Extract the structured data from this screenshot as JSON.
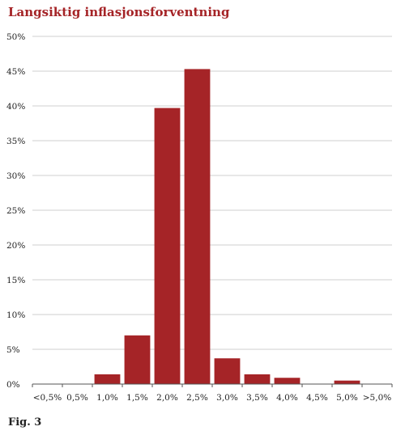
{
  "title": "Langsiktig inflasjonsforventning",
  "caption": "Fig. 3",
  "colors": {
    "bar": "#a52427",
    "title": "#a52427",
    "grid": "#cfcfcf",
    "axis": "#555555"
  },
  "chart_data": {
    "type": "bar",
    "title": "Langsiktig inflasjonsforventning",
    "xlabel": "",
    "ylabel": "",
    "categories": [
      "<0,5%",
      "0,5%",
      "1,0%",
      "1,5%",
      "2,0%",
      "2,5%",
      "3,0%",
      "3,5%",
      "4,0%",
      "4,5%",
      "5,0%",
      ">5,0%"
    ],
    "values": [
      0,
      0,
      1.4,
      7.0,
      39.7,
      45.3,
      3.7,
      1.4,
      0.9,
      0,
      0.5,
      0
    ],
    "ylim": [
      0,
      50
    ],
    "yticks": [
      0,
      5,
      10,
      15,
      20,
      25,
      30,
      35,
      40,
      45,
      50
    ],
    "ytick_labels": [
      "0%",
      "5%",
      "10%",
      "15%",
      "20%",
      "25%",
      "30%",
      "35%",
      "40%",
      "45%",
      "50%"
    ],
    "grid": true,
    "legend": "none"
  }
}
